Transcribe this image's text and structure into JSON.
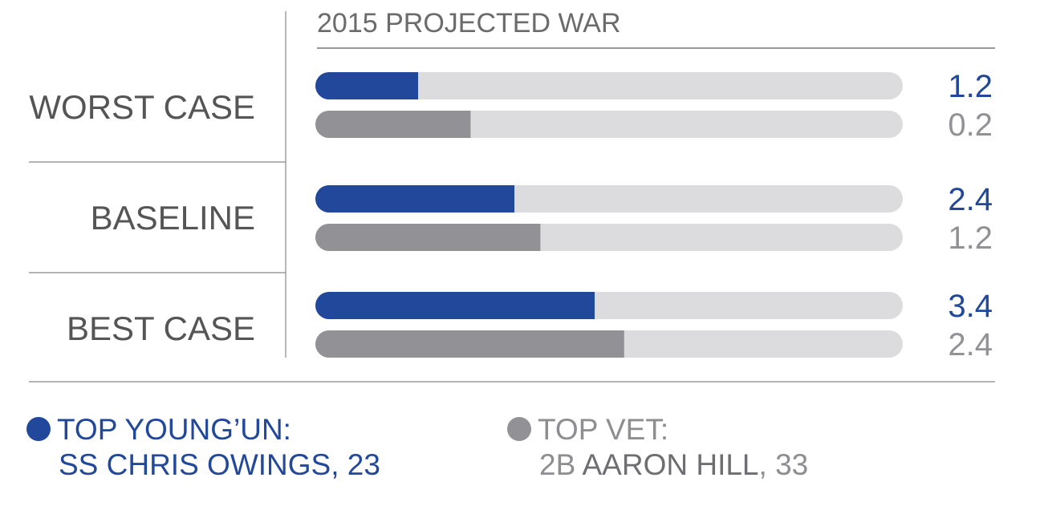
{
  "chart_data": {
    "type": "bar",
    "orientation": "horizontal",
    "title": "2015 PROJECTED WAR",
    "categories": [
      "WORST CASE",
      "BASELINE",
      "BEST CASE"
    ],
    "series": [
      {
        "name": "TOP YOUNG'UN: SS CHRIS OWINGS, 23",
        "color": "#21489a",
        "values": [
          1.2,
          2.4,
          3.4
        ],
        "labels": [
          "1.2",
          "2.4",
          "3.4"
        ]
      },
      {
        "name": "TOP VET: 2B AARON HILL, 33",
        "color": "#929296",
        "values": [
          0.2,
          1.2,
          2.4
        ],
        "labels": [
          "0.2",
          "1.2",
          "2.4"
        ]
      }
    ],
    "track_color": "#dcdcde",
    "grid": false,
    "legend_position": "bottom"
  },
  "legend": {
    "young": {
      "heading": "TOP YOUNG’UN:",
      "pos": "SS ",
      "name": "CHRIS OWINGS",
      "age": ", 23"
    },
    "vet": {
      "heading": "TOP VET:",
      "pos": "2B ",
      "name": "AARON HILL",
      "age": ", 33"
    }
  }
}
